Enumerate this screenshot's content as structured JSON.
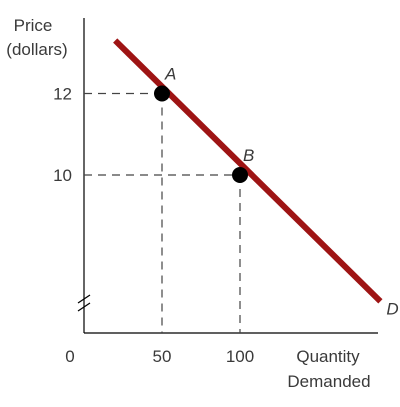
{
  "chart_data": {
    "type": "line",
    "title": "",
    "ylabel_lines": [
      "Price",
      "(dollars)"
    ],
    "xlabel_lines": [
      "Quantity",
      "Demanded"
    ],
    "origin_label": "0",
    "axis_break": true,
    "x_ticks": [
      {
        "value": 50,
        "label": "50"
      },
      {
        "value": 100,
        "label": "100"
      }
    ],
    "y_ticks": [
      {
        "value": 12,
        "label": "12"
      },
      {
        "value": 10,
        "label": "10"
      }
    ],
    "series": [
      {
        "name": "D",
        "color": "#9e1414",
        "x": [
          20,
          190
        ],
        "y": [
          13.3,
          6.9
        ]
      }
    ],
    "points": [
      {
        "label": "A",
        "x": 50,
        "y": 12,
        "color": "#000000"
      },
      {
        "label": "B",
        "x": 100,
        "y": 10,
        "color": "#000000"
      }
    ],
    "xlim": [
      0,
      190
    ],
    "ylim": [
      6.9,
      13.5
    ],
    "grid": false,
    "colors": {
      "axis": "#000000",
      "guide": "#444444",
      "curve": "#9e1414"
    }
  }
}
